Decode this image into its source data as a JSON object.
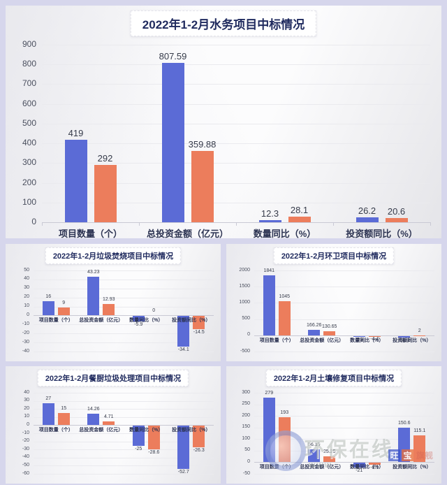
{
  "colors": {
    "bar_blue": "#5b6bd6",
    "bar_orange": "#ec7d5c",
    "title_navy": "#1f2a5e",
    "page_background": "#d6d6ec"
  },
  "watermark": {
    "brand": "环保在线",
    "www": "www.",
    "badge1": "旺",
    "badge2": "宝",
    "suffix": "旗舰"
  },
  "chart_data": [
    {
      "type": "bar",
      "title": "2022年1-2月水务项目中标情况",
      "categories": [
        "项目数量（个）",
        "总投资金额（亿元）",
        "数量同比（%）",
        "投资额同比（%）"
      ],
      "series": [
        {
          "name": "blue",
          "color": "#5b6bd6",
          "values": [
            419,
            807.59,
            12.3,
            26.2
          ]
        },
        {
          "name": "orange",
          "color": "#ec7d5c",
          "values": [
            292,
            359.88,
            28.1,
            20.6
          ]
        }
      ],
      "ylim": [
        0,
        900
      ],
      "ytick_step": 100,
      "grid": true,
      "legend": "none"
    },
    {
      "type": "bar",
      "title": "2022年1-2月垃圾焚烧项目中标情况",
      "categories": [
        "项目数量（个）",
        "总投资金额（亿元）",
        "数量同比（%）",
        "投资额同比（%）"
      ],
      "series": [
        {
          "name": "blue",
          "color": "#5b6bd6",
          "values": [
            16,
            43.23,
            -5.9,
            -34.1
          ]
        },
        {
          "name": "orange",
          "color": "#ec7d5c",
          "values": [
            9,
            12.93,
            0,
            -14.5
          ]
        }
      ],
      "ylim": [
        -40,
        50
      ],
      "ytick_step": 10,
      "grid": true,
      "legend": "none"
    },
    {
      "type": "bar",
      "title": "2022年1-2月环卫项目中标情况",
      "categories": [
        "项目数量（个）",
        "总投资金额（亿元）",
        "数量同比（%）",
        "投资额同比（%）"
      ],
      "series": [
        {
          "name": "blue",
          "color": "#5b6bd6",
          "values": [
            1841,
            166.26,
            -23,
            -51.1
          ]
        },
        {
          "name": "orange",
          "color": "#ec7d5c",
          "values": [
            1045,
            130.65,
            -4.4,
            2
          ]
        }
      ],
      "ylim": [
        -500,
        2000
      ],
      "ytick_step": 500,
      "grid": true,
      "legend": "none"
    },
    {
      "type": "bar",
      "title": "2022年1-2月餐厨垃圾处理项目中标情况",
      "categories": [
        "项目数量（个）",
        "总投资金额（亿元）",
        "数量同比（%）",
        "投资额同比（%）"
      ],
      "series": [
        {
          "name": "blue",
          "color": "#5b6bd6",
          "values": [
            27,
            14.26,
            -25,
            -52.7
          ]
        },
        {
          "name": "orange",
          "color": "#ec7d5c",
          "values": [
            15,
            4.71,
            -28.6,
            -26.3
          ]
        }
      ],
      "ylim": [
        -60,
        40
      ],
      "ytick_step": 10,
      "grid": true,
      "legend": "none"
    },
    {
      "type": "bar",
      "title": "2022年1-2月土壤修复项目中标情况",
      "categories": [
        "项目数量（个）",
        "总投资金额（亿元）",
        "数量同比（%）",
        "投资额同比（%）"
      ],
      "series": [
        {
          "name": "blue",
          "color": "#5b6bd6",
          "values": [
            279,
            56.19,
            -21,
            150.6
          ]
        },
        {
          "name": "orange",
          "color": "#ec7d5c",
          "values": [
            193,
            25.25,
            -8.1,
            115.1
          ]
        }
      ],
      "ylim": [
        -50,
        300
      ],
      "ytick_step": 50,
      "grid": true,
      "legend": "none"
    }
  ]
}
